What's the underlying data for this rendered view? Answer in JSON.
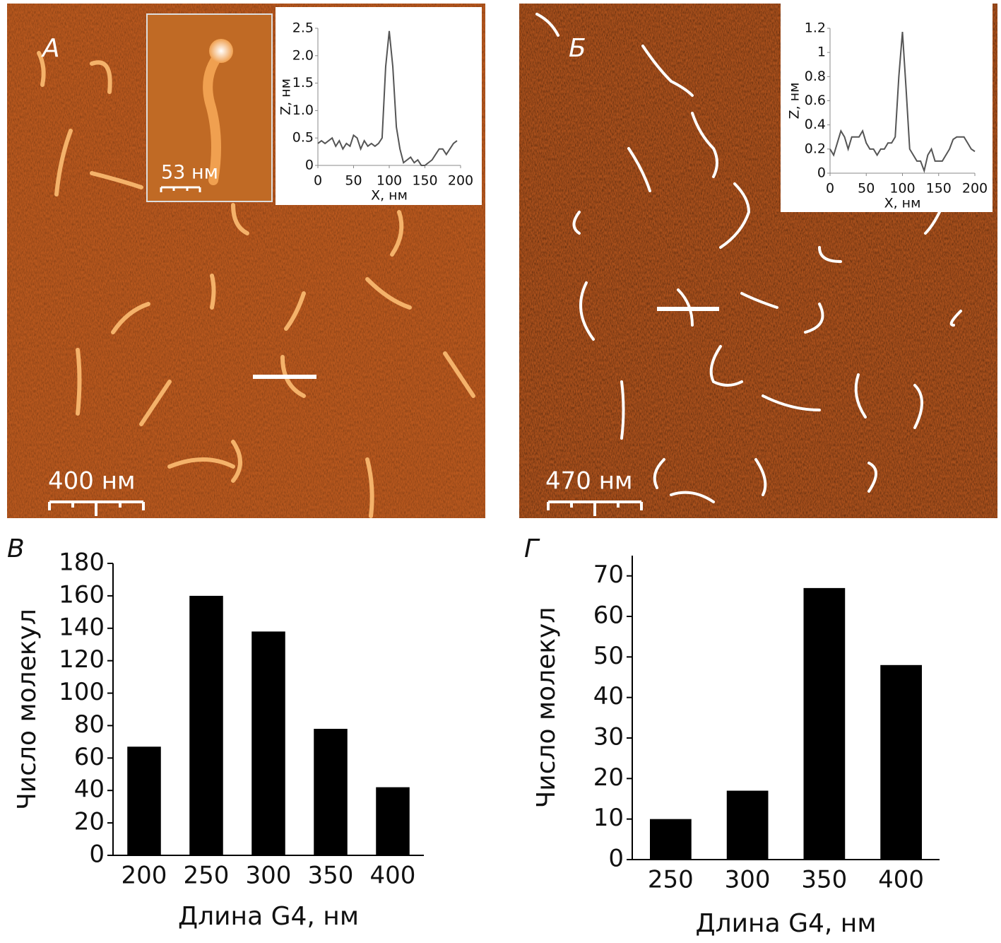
{
  "panels": [
    {
      "label": "А",
      "scale_bar": "400 нм",
      "inset_scale_bar": "53 нм"
    },
    {
      "label": "Б",
      "scale_bar": "470 нм"
    },
    {
      "label": "В"
    },
    {
      "label": "Г"
    }
  ],
  "chart_data": [
    {
      "type": "line",
      "xlabel": "X, нм",
      "ylabel": "Z, нм",
      "x": [
        0,
        5,
        10,
        15,
        20,
        25,
        30,
        35,
        40,
        45,
        50,
        55,
        60,
        65,
        70,
        75,
        80,
        85,
        90,
        95,
        100,
        105,
        110,
        115,
        120,
        125,
        130,
        135,
        140,
        145,
        150,
        155,
        160,
        165,
        170,
        175,
        180,
        185,
        190,
        195
      ],
      "series": [
        {
          "color": "#555555",
          "values": [
            0.4,
            0.45,
            0.4,
            0.45,
            0.5,
            0.35,
            0.45,
            0.3,
            0.4,
            0.35,
            0.55,
            0.5,
            0.3,
            0.45,
            0.35,
            0.4,
            0.35,
            0.4,
            0.5,
            1.8,
            2.45,
            1.8,
            0.7,
            0.3,
            0.05,
            0.1,
            0.15,
            0.05,
            0.1,
            0,
            0,
            0.05,
            0.1,
            0.2,
            0.3,
            0.3,
            0.2,
            0.3,
            0.4,
            0.45
          ]
        }
      ],
      "xlim": [
        0,
        200
      ],
      "xticks": [
        0,
        50,
        100,
        150,
        200
      ],
      "ylim": [
        0,
        2.5
      ],
      "yticks": [
        0,
        0.5,
        {
          "value": 1,
          "label": "1.0"
        },
        1.5,
        {
          "value": 2,
          "label": "2.0"
        },
        2.5
      ]
    },
    {
      "type": "line",
      "xlabel": "X, нм",
      "ylabel": "Z, нм",
      "x": [
        0,
        5,
        10,
        15,
        20,
        25,
        30,
        35,
        40,
        45,
        50,
        55,
        60,
        65,
        70,
        75,
        80,
        85,
        90,
        95,
        100,
        105,
        110,
        115,
        120,
        125,
        130,
        135,
        140,
        145,
        150,
        155,
        160,
        165,
        170,
        175,
        180,
        185,
        190,
        195,
        200
      ],
      "series": [
        {
          "color": "#555555",
          "values": [
            0.2,
            0.15,
            0.25,
            0.35,
            0.3,
            0.2,
            0.3,
            0.3,
            0.3,
            0.35,
            0.25,
            0.2,
            0.2,
            0.15,
            0.2,
            0.2,
            0.25,
            0.25,
            0.3,
            0.8,
            1.17,
            0.7,
            0.2,
            0.15,
            0.1,
            0.1,
            0.02,
            0.15,
            0.2,
            0.1,
            0.1,
            0.1,
            0.15,
            0.2,
            0.28,
            0.3,
            0.3,
            0.3,
            0.25,
            0.2,
            0.18
          ]
        }
      ],
      "xlim": [
        0,
        200
      ],
      "xticks": [
        0,
        50,
        100,
        150,
        200
      ],
      "ylim": [
        0,
        1.2
      ],
      "yticks": [
        0,
        0.2,
        0.4,
        0.6,
        0.8,
        1,
        1.2
      ]
    },
    {
      "type": "bar",
      "xlabel": "Длина G4, нм",
      "ylabel": "Число молекул",
      "categories": [
        "200",
        "250",
        "300",
        "350",
        "400"
      ],
      "values": [
        67,
        160,
        138,
        78,
        42
      ],
      "color": "#000000",
      "ylim": [
        0,
        180
      ],
      "yticks": [
        0,
        20,
        40,
        60,
        80,
        100,
        120,
        140,
        160,
        180
      ]
    },
    {
      "type": "bar",
      "xlabel": "Длина G4, нм",
      "ylabel": "Число молекул",
      "categories": [
        "250",
        "300",
        "350",
        "400"
      ],
      "values": [
        10,
        17,
        67,
        48
      ],
      "color": "#000000",
      "ylim": [
        0,
        75
      ],
      "yticks": [
        0,
        10,
        20,
        30,
        40,
        50,
        60,
        70
      ]
    }
  ]
}
